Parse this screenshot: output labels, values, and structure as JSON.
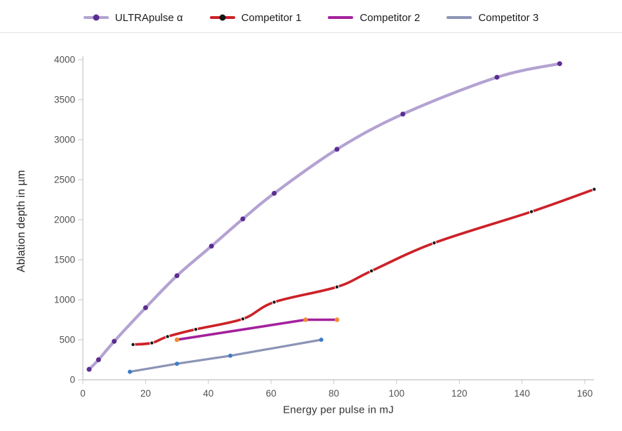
{
  "legend": {
    "items": [
      {
        "label": "ULTRApulse α",
        "line_color": "#b3a2d2",
        "marker_color": "#5c2d91",
        "has_marker": true
      },
      {
        "label": "Competitor 1",
        "line_color": "#cc2127",
        "marker_color": "#151515",
        "has_marker": true
      },
      {
        "label": "Competitor 2",
        "line_color": "#a3219c",
        "marker_color": null,
        "has_marker": false
      },
      {
        "label": "Competitor 3",
        "line_color": "#8c94b6",
        "marker_color": null,
        "has_marker": false
      }
    ]
  },
  "chart_data": {
    "type": "line",
    "title": "",
    "xlabel": "Energy per pulse in mJ",
    "ylabel": "Ablation depth in µm",
    "xlim": [
      0,
      160
    ],
    "ylim": [
      0,
      4000
    ],
    "x_ticks": [
      0,
      20,
      40,
      60,
      80,
      100,
      120,
      140,
      160
    ],
    "y_ticks": [
      0,
      500,
      1000,
      1500,
      2000,
      2500,
      3000,
      3500,
      4000
    ],
    "grid": false,
    "legend_position": "top",
    "series": [
      {
        "name": "ULTRApulse α",
        "color": "#b3a2d2",
        "marker_color": "#5c2d91",
        "marker_halo": false,
        "smooth": true,
        "line_width": 4.2,
        "marker_radius": 3.5,
        "points": [
          [
            2,
            130
          ],
          [
            5,
            250
          ],
          [
            10,
            480
          ],
          [
            20,
            900
          ],
          [
            30,
            1300
          ],
          [
            41,
            1670
          ],
          [
            51,
            2010
          ],
          [
            61,
            2330
          ],
          [
            81,
            2880
          ],
          [
            102,
            3320
          ],
          [
            132,
            3780
          ],
          [
            152,
            3950
          ]
        ]
      },
      {
        "name": "Competitor 1",
        "color": "#cc2127",
        "marker_color": "#151515",
        "marker_halo": true,
        "smooth": true,
        "line_width": 3.6,
        "marker_radius": 2.7,
        "points": [
          [
            16,
            440
          ],
          [
            22,
            460
          ],
          [
            27,
            540
          ],
          [
            36,
            630
          ],
          [
            51,
            760
          ],
          [
            61,
            970
          ],
          [
            81,
            1160
          ],
          [
            92,
            1360
          ],
          [
            112,
            1710
          ],
          [
            143,
            2100
          ],
          [
            163,
            2380
          ]
        ]
      },
      {
        "name": "Competitor 2",
        "color": "#a3219c",
        "marker_color": "#f08c33",
        "marker_halo": false,
        "smooth": false,
        "line_width": 3.6,
        "marker_radius": 3.3,
        "points": [
          [
            30,
            500
          ],
          [
            71,
            750
          ],
          [
            81,
            750
          ]
        ]
      },
      {
        "name": "Competitor 3",
        "color": "#8c94b6",
        "marker_color": "#3e7dc8",
        "marker_halo": false,
        "smooth": false,
        "line_width": 3.2,
        "marker_radius": 3.0,
        "points": [
          [
            15,
            100
          ],
          [
            30,
            200
          ],
          [
            47,
            300
          ],
          [
            76,
            500
          ]
        ]
      }
    ]
  },
  "colors": {
    "axis_line": "#d2d2d2",
    "tick_mark": "#c9c9c9",
    "tick_label": "#515151",
    "divider": "#e3e3e3"
  }
}
